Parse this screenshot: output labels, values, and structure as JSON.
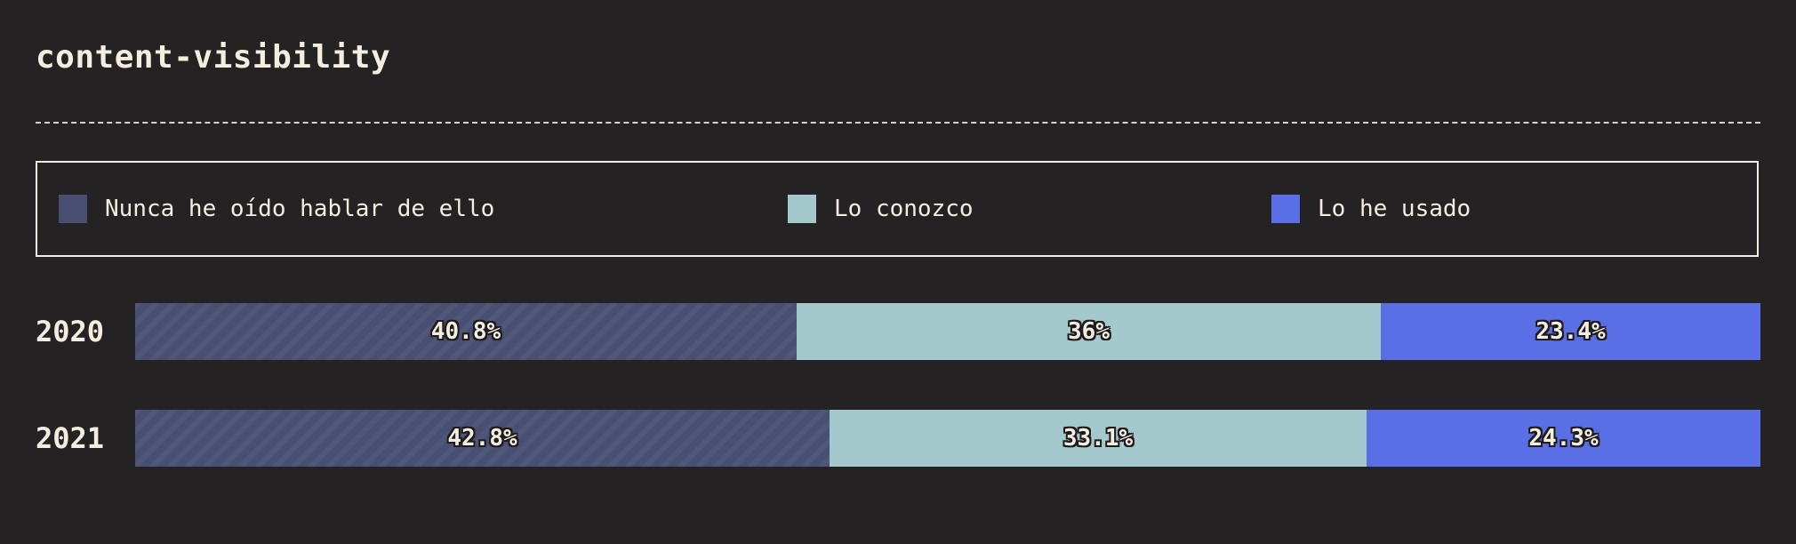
{
  "chart_data": {
    "type": "bar",
    "orientation": "horizontal",
    "stacked": true,
    "normalized": true,
    "title": "content-visibility",
    "categories": [
      "2020",
      "2021"
    ],
    "series": [
      {
        "name": "Nunca he oído hablar de ello",
        "values": [
          40.8,
          42.8
        ],
        "labels": [
          "40.8%",
          "42.8%"
        ],
        "color": "#484f72"
      },
      {
        "name": "Lo conozco",
        "values": [
          36.0,
          33.1
        ],
        "labels": [
          "36%",
          "33.1%"
        ],
        "color": "#a3c9cc"
      },
      {
        "name": "Lo he usado",
        "values": [
          23.4,
          24.3
        ],
        "labels": [
          "23.4%",
          "24.3%"
        ],
        "color": "#5a6fe6"
      }
    ],
    "xlim": [
      0,
      100
    ],
    "legend_position": "top",
    "grid": false
  }
}
